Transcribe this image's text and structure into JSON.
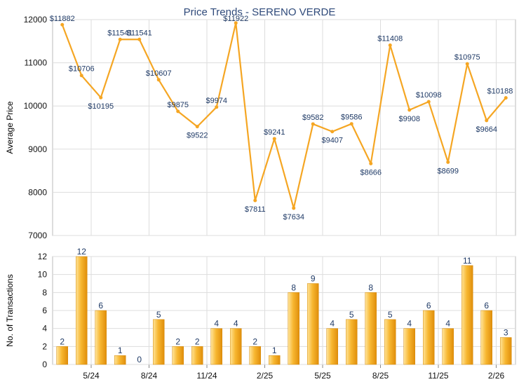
{
  "title": "Price Trends - SERENO VERDE",
  "colors": {
    "line": "#f5a623",
    "bar_light": "#ffe49a",
    "bar_mid": "#f7b731",
    "bar_dark": "#e08e0b",
    "label_text": "#1f3a66",
    "grid": "#dddddd",
    "axis_text": "#111111",
    "title_text": "#2f4a7a"
  },
  "chart_data": [
    {
      "type": "line",
      "ylabel": "Average Price",
      "ylim": [
        7000,
        12000
      ],
      "yticks": [
        7000,
        8000,
        9000,
        10000,
        11000,
        12000
      ],
      "grid": true,
      "values": [
        11882,
        10706,
        10195,
        11541,
        11541,
        10607,
        9875,
        9522,
        9974,
        11922,
        7811,
        9241,
        7634,
        9582,
        9407,
        9586,
        8666,
        11408,
        9908,
        10098,
        8699,
        10975,
        9664,
        10188
      ],
      "labels": [
        "$11882",
        "$10706",
        "$10195",
        "$11541",
        "$11541",
        "$10607",
        "$9875",
        "$9522",
        "$9974",
        "$11922",
        "$7811",
        "$9241",
        "$7634",
        "$9582",
        "$9407",
        "$9586",
        "$8666",
        "$11408",
        "$9908",
        "$10098",
        "$8699",
        "$10975",
        "$9664",
        "$10188"
      ]
    },
    {
      "type": "bar",
      "ylabel": "No. of Transactions",
      "ylim": [
        0,
        12
      ],
      "yticks": [
        0,
        2,
        4,
        6,
        8,
        10,
        12
      ],
      "grid": true,
      "values": [
        2,
        12,
        6,
        1,
        0,
        5,
        2,
        2,
        4,
        4,
        2,
        1,
        8,
        9,
        4,
        5,
        8,
        5,
        4,
        6,
        4,
        11,
        6,
        3
      ],
      "xticks": [
        "5/24",
        "8/24",
        "11/24",
        "2/25",
        "5/25",
        "8/25",
        "11/25",
        "2/26"
      ]
    }
  ]
}
